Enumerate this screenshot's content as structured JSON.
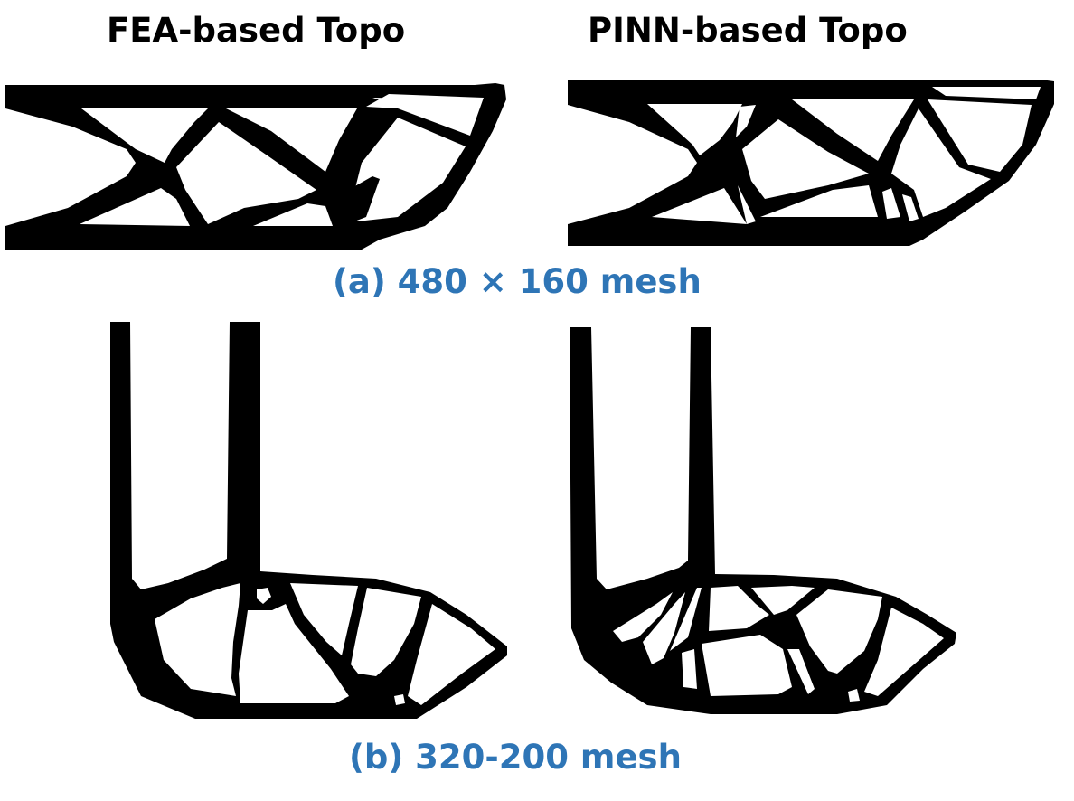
{
  "columns": {
    "left_header": "FEA-based Topo",
    "right_header": "PINN-based Topo"
  },
  "rows": [
    {
      "caption": "(a) 480 × 160 mesh"
    },
    {
      "caption": "(b) 320-200 mesh"
    }
  ],
  "colors": {
    "caption": "#2e75b6",
    "header": "#000000",
    "material": "#000000",
    "void": "#ffffff"
  }
}
